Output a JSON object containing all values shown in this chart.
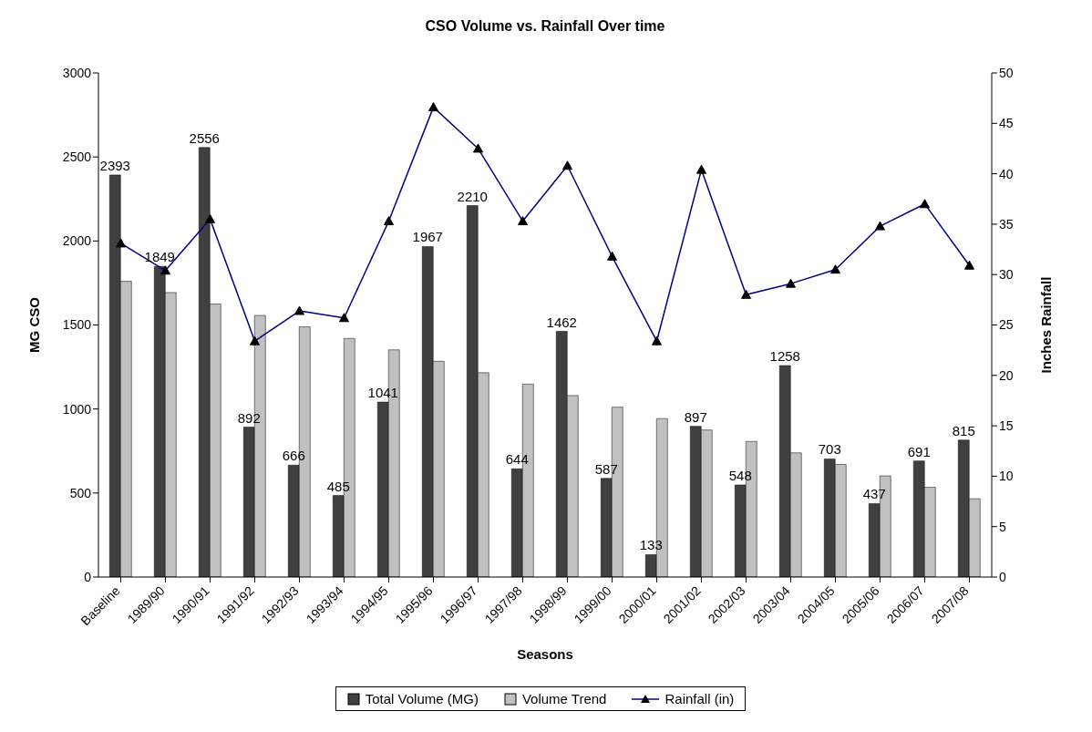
{
  "chart_data": {
    "type": "bar",
    "title": "CSO Volume vs. Rainfall Over time",
    "xlabel": "Seasons",
    "ylabel": "MG CSO",
    "y2label": "Inches Rainfall",
    "categories": [
      "Baseline",
      "1989/90",
      "1990/91",
      "1991/92",
      "1992/93",
      "1993/94",
      "1994/95",
      "1995/96",
      "1996/97",
      "1997/98",
      "1998/99",
      "1999/00",
      "2000/01",
      "2001/02",
      "2002/03",
      "2003/04",
      "2004/05",
      "2005/06",
      "2006/07",
      "2007/08"
    ],
    "series": [
      {
        "name": "Total Volume (MG)",
        "color": "#404040",
        "values": [
          2393,
          1849,
          2556,
          892,
          666,
          485,
          1041,
          1967,
          2210,
          644,
          1462,
          587,
          133,
          897,
          548,
          1258,
          703,
          437,
          691,
          815
        ],
        "value_labels": [
          "2393",
          "1849",
          "2556",
          "892",
          "666",
          "485",
          "1041",
          "1967",
          "2210",
          "644",
          "1462",
          "587",
          "133",
          "897",
          "548",
          "1258",
          "703",
          "437",
          "691",
          "815"
        ]
      },
      {
        "name": "Volume Trend",
        "color": "#c0c0c0",
        "values": [
          1760,
          1693,
          1625,
          1557,
          1489,
          1420,
          1352,
          1284,
          1216,
          1148,
          1080,
          1011,
          943,
          875,
          807,
          739,
          670,
          602,
          534,
          466
        ]
      },
      {
        "name": "Rainfall (in)",
        "type": "line",
        "axis": "y2",
        "color": "#000080",
        "marker": "triangle",
        "values": [
          33.1,
          30.4,
          35.5,
          23.4,
          26.4,
          25.7,
          35.3,
          46.6,
          42.5,
          35.3,
          40.8,
          31.8,
          23.4,
          40.4,
          28.0,
          29.1,
          30.5,
          34.8,
          37.0,
          30.9
        ]
      }
    ],
    "ylim": [
      0,
      3000
    ],
    "yticks": [
      0,
      500,
      1000,
      1500,
      2000,
      2500,
      3000
    ],
    "y2lim": [
      0,
      50
    ],
    "y2ticks": [
      0,
      5,
      10,
      15,
      20,
      25,
      30,
      35,
      40,
      45,
      50
    ],
    "legend": "bottom"
  }
}
